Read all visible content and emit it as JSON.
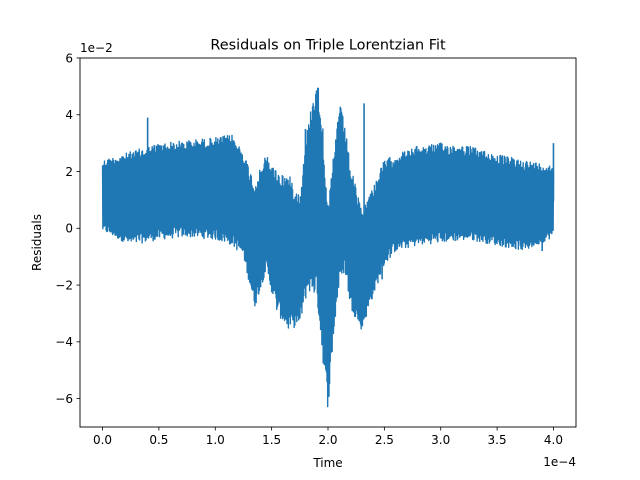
{
  "chart_data": {
    "type": "line",
    "title": "Residuals on Triple Lorentzian Fit",
    "xlabel": "Time",
    "ylabel": "Residuals",
    "x_offset_text": "1e−4",
    "y_offset_text": "1e−2",
    "xlim": [
      -0.2,
      4.2
    ],
    "ylim": [
      -7,
      6
    ],
    "xticks": [
      {
        "v": 0.0,
        "label": "0.0"
      },
      {
        "v": 0.5,
        "label": "0.5"
      },
      {
        "v": 1.0,
        "label": "1.0"
      },
      {
        "v": 1.5,
        "label": "1.5"
      },
      {
        "v": 2.0,
        "label": "2.0"
      },
      {
        "v": 2.5,
        "label": "2.5"
      },
      {
        "v": 3.0,
        "label": "3.0"
      },
      {
        "v": 3.5,
        "label": "3.5"
      },
      {
        "v": 4.0,
        "label": "4.0"
      }
    ],
    "yticks": [
      {
        "v": -6,
        "label": "−6"
      },
      {
        "v": -4,
        "label": "−4"
      },
      {
        "v": -2,
        "label": "−2"
      },
      {
        "v": 0,
        "label": "0"
      },
      {
        "v": 2,
        "label": "2"
      },
      {
        "v": 4,
        "label": "4"
      },
      {
        "v": 6,
        "label": "6"
      }
    ],
    "grid": false,
    "color": "#1f77b4",
    "series": [
      {
        "x": [
          0.0,
          0.25,
          0.5,
          0.75,
          1.0,
          1.15,
          1.25,
          1.35,
          1.45,
          1.55,
          1.65,
          1.75,
          1.82,
          1.9,
          1.95,
          2.0,
          2.05,
          2.1,
          2.15,
          2.2,
          2.3,
          2.4,
          2.5,
          2.6,
          2.8,
          3.0,
          3.25,
          3.5,
          3.75,
          4.0
        ],
        "upper": [
          2.4,
          2.7,
          3.0,
          3.1,
          3.2,
          3.3,
          2.7,
          1.6,
          2.6,
          2.0,
          1.9,
          1.2,
          3.6,
          5.4,
          4.0,
          0.8,
          2.6,
          4.5,
          3.6,
          2.2,
          0.6,
          1.5,
          2.4,
          2.6,
          2.9,
          3.0,
          2.9,
          2.6,
          2.4,
          2.2
        ],
        "lower": [
          -0.1,
          -0.6,
          -0.4,
          -0.3,
          -0.4,
          -0.6,
          -1.0,
          -2.8,
          -1.5,
          -3.0,
          -3.6,
          -3.4,
          -2.2,
          -2.4,
          -4.5,
          -6.4,
          -3.8,
          -2.0,
          -1.5,
          -2.8,
          -3.6,
          -2.4,
          -1.3,
          -0.8,
          -0.6,
          -0.5,
          -0.4,
          -0.6,
          -0.8,
          -0.3
        ],
        "spikes": [
          [
            0.4,
            3.9
          ],
          [
            1.8,
            3.5
          ],
          [
            2.0,
            -5.2
          ],
          [
            2.32,
            4.4
          ],
          [
            2.48,
            -1.8
          ],
          [
            3.9,
            -0.8
          ],
          [
            4.0,
            3.0
          ]
        ]
      }
    ]
  }
}
